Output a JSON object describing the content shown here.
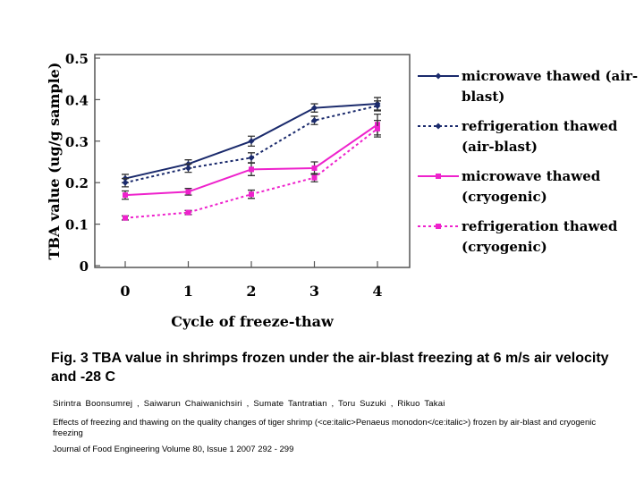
{
  "chart_data": {
    "type": "line",
    "title": "",
    "xlabel": "Cycle of freeze-thaw",
    "ylabel": "TBA value (ug/g sample)",
    "categories": [
      "0",
      "1",
      "2",
      "3",
      "4"
    ],
    "x": [
      0,
      1,
      2,
      3,
      4
    ],
    "y_ticks": [
      "0",
      "0.1",
      "0.2",
      "0.3",
      "0.4",
      "0.5"
    ],
    "ylim": [
      0,
      0.5
    ],
    "grid": false,
    "legend_position": "right",
    "series": [
      {
        "name": "microwave thawed (air-blast)",
        "legend_lines": [
          "microwave thawed (air-",
          "blast)"
        ],
        "color": "#1a2a6c",
        "style": "solid",
        "marker": "diamond",
        "values": [
          0.21,
          0.245,
          0.3,
          0.38,
          0.39
        ],
        "errors": [
          0.01,
          0.01,
          0.012,
          0.01,
          0.015
        ]
      },
      {
        "name": "refrigeration thawed (air-blast)",
        "legend_lines": [
          "refrigeration thawed",
          "(air-blast)"
        ],
        "color": "#1a2a6c",
        "style": "dotted",
        "marker": "diamond",
        "values": [
          0.2,
          0.235,
          0.26,
          0.35,
          0.385
        ],
        "errors": [
          0.01,
          0.01,
          0.012,
          0.01,
          0.012
        ]
      },
      {
        "name": "microwave thawed (cryogenic)",
        "legend_lines": [
          "microwave thawed",
          "(cryogenic)"
        ],
        "color": "#ee22cc",
        "style": "solid",
        "marker": "square",
        "values": [
          0.17,
          0.178,
          0.232,
          0.235,
          0.34
        ],
        "errors": [
          0.01,
          0.008,
          0.015,
          0.015,
          0.025
        ]
      },
      {
        "name": "refrigeration thawed (cryogenic)",
        "legend_lines": [
          "refrigeration thawed",
          "(cryogenic)"
        ],
        "color": "#ee22cc",
        "style": "dotted",
        "marker": "square",
        "values": [
          0.115,
          0.128,
          0.172,
          0.212,
          0.33
        ],
        "errors": [
          0.005,
          0.005,
          0.01,
          0.01,
          0.02
        ]
      }
    ]
  },
  "caption": "Fig. 3   TBA value in shrimps frozen under the air-blast freezing at 6 m/s air velocity and -28 C",
  "authors": "Sirintra Boonsumrej , Saiwarun Chaiwanichsiri , Sumate Tantratian , Toru Suzuki , Rikuo Takai",
  "article_title": "Effects of freezing and thawing on the quality changes of tiger shrimp (<ce:italic>Penaeus monodon</ce:italic>) frozen by air-blast and cryogenic freezing",
  "journal": "Journal of Food Engineering Volume 80, Issue 1 2007 292 - 299"
}
